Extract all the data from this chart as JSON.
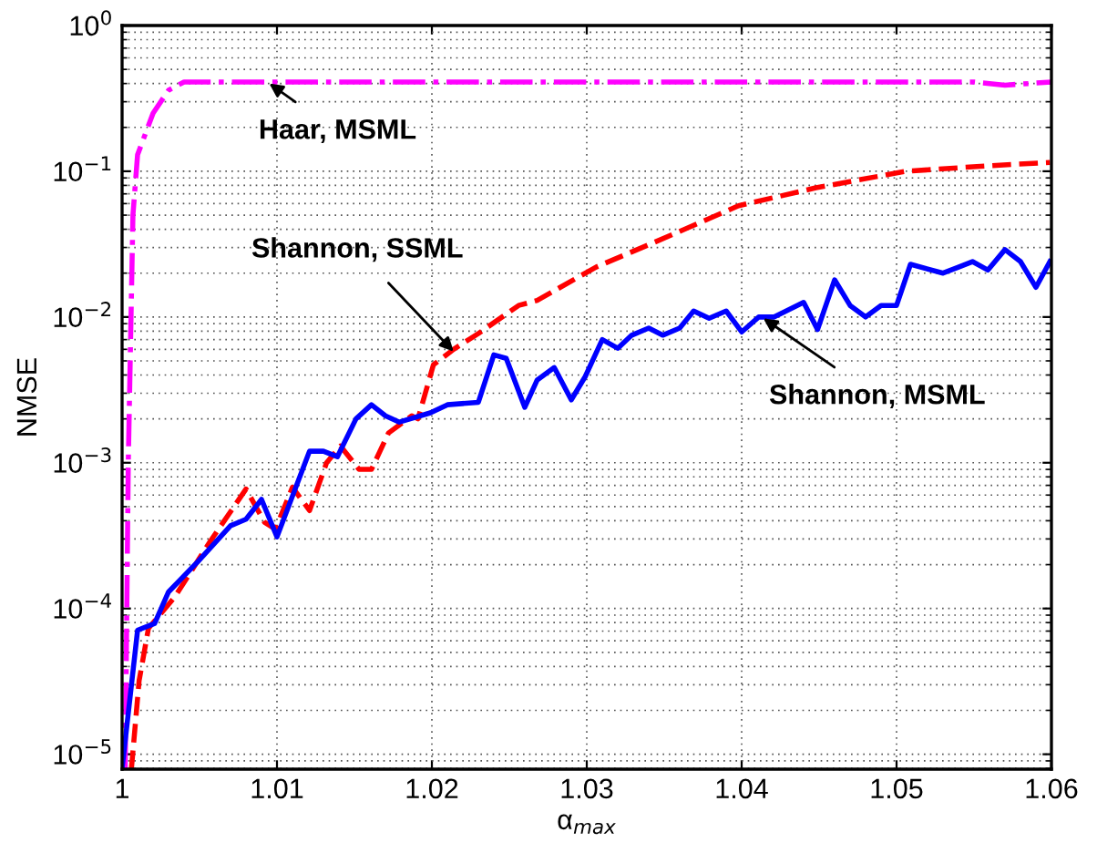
{
  "chart_data": {
    "type": "line",
    "xlabel": "α$_{max}$",
    "ylabel": "NMSE",
    "log": "y",
    "grid": true,
    "xlim": [
      1,
      1.06
    ],
    "xticks": [
      1,
      1.01,
      1.02,
      1.03,
      1.04,
      1.05,
      1.06
    ],
    "ylim": [
      7.9e-06,
      1
    ],
    "yticks": [
      {
        "value": 1e-05,
        "label": "10$^{−5}$"
      },
      {
        "value": 0.0001,
        "label": "10$^{−4}$"
      },
      {
        "value": 0.001,
        "label": "10$^{−3}$"
      },
      {
        "value": 0.01,
        "label": "10$^{−2}$"
      },
      {
        "value": 0.1,
        "label": "10$^{−1}$"
      },
      {
        "value": 1,
        "label": "10$^{0}$"
      }
    ],
    "series": [
      {
        "color": "#ff00ff",
        "line_style": "dashdot",
        "x": [
          1.0002,
          1.0004,
          1.0007,
          1.001,
          1.002,
          1.003,
          1.004,
          1.01,
          1.02,
          1.03,
          1.04,
          1.05,
          1.055,
          1.057,
          1.06
        ],
        "values": [
          8e-06,
          0.001,
          0.05,
          0.13,
          0.25,
          0.36,
          0.41,
          0.41,
          0.41,
          0.41,
          0.41,
          0.41,
          0.41,
          0.39,
          0.41
        ]
      },
      {
        "color": "#ff0000",
        "line_style": "dashed",
        "x": [
          1.0006,
          1.0011,
          1.0017,
          1.0034,
          1.0057,
          1.008,
          1.0092,
          1.0099,
          1.011,
          1.0121,
          1.0132,
          1.0141,
          1.0153,
          1.0161,
          1.0172,
          1.0187,
          1.0191,
          1.0201,
          1.0214,
          1.023,
          1.0256,
          1.0268,
          1.0306,
          1.0345,
          1.0398,
          1.0448,
          1.0506,
          1.0559,
          1.0599
        ],
        "values": [
          7.9e-06,
          3.2e-05,
          7.3e-05,
          0.00012,
          0.00029,
          0.00066,
          0.00039,
          0.00035,
          0.00068,
          0.00047,
          0.001,
          0.0013,
          0.0009,
          0.0009,
          0.0016,
          0.0021,
          0.002,
          0.0047,
          0.006,
          0.0077,
          0.012,
          0.013,
          0.022,
          0.033,
          0.058,
          0.077,
          0.1,
          0.109,
          0.115
        ]
      },
      {
        "color": "#0000ff",
        "line_style": "solid",
        "x": [
          1.0,
          1.001,
          1.0021,
          1.003,
          1.0049,
          1.007,
          1.008,
          1.009,
          1.01,
          1.0121,
          1.013,
          1.0139,
          1.0151,
          1.0161,
          1.017,
          1.0179,
          1.0199,
          1.021,
          1.023,
          1.024,
          1.0248,
          1.026,
          1.0268,
          1.0279,
          1.029,
          1.0299,
          1.031,
          1.032,
          1.0329,
          1.034,
          1.0349,
          1.036,
          1.0369,
          1.0379,
          1.039,
          1.04,
          1.0411,
          1.0421,
          1.044,
          1.0449,
          1.046,
          1.047,
          1.048,
          1.049,
          1.05,
          1.0509,
          1.053,
          1.054,
          1.0549,
          1.0559,
          1.057,
          1.058,
          1.059,
          1.0599
        ],
        "values": [
          8e-06,
          7.1e-05,
          7.9e-05,
          0.00013,
          0.00021,
          0.00037,
          0.00041,
          0.00056,
          0.00031,
          0.0012,
          0.0012,
          0.0011,
          0.002,
          0.0025,
          0.0021,
          0.0019,
          0.0022,
          0.0025,
          0.0026,
          0.0055,
          0.0052,
          0.0024,
          0.0037,
          0.0045,
          0.0027,
          0.0039,
          0.007,
          0.0061,
          0.0075,
          0.0084,
          0.0075,
          0.0084,
          0.011,
          0.0098,
          0.011,
          0.0079,
          0.01,
          0.01,
          0.0126,
          0.0082,
          0.018,
          0.012,
          0.01,
          0.012,
          0.012,
          0.023,
          0.02,
          0.022,
          0.024,
          0.021,
          0.029,
          0.024,
          0.016,
          0.024
        ]
      }
    ],
    "annotations": [
      {
        "text": "Haar, MSML",
        "x": 1.0095,
        "y": 0.4
      },
      {
        "text": "Shannon, SSML",
        "x": 1.0214,
        "y": 0.0058
      },
      {
        "text": "Shannon, MSML",
        "x": 1.0414,
        "y": 0.0098
      }
    ]
  }
}
